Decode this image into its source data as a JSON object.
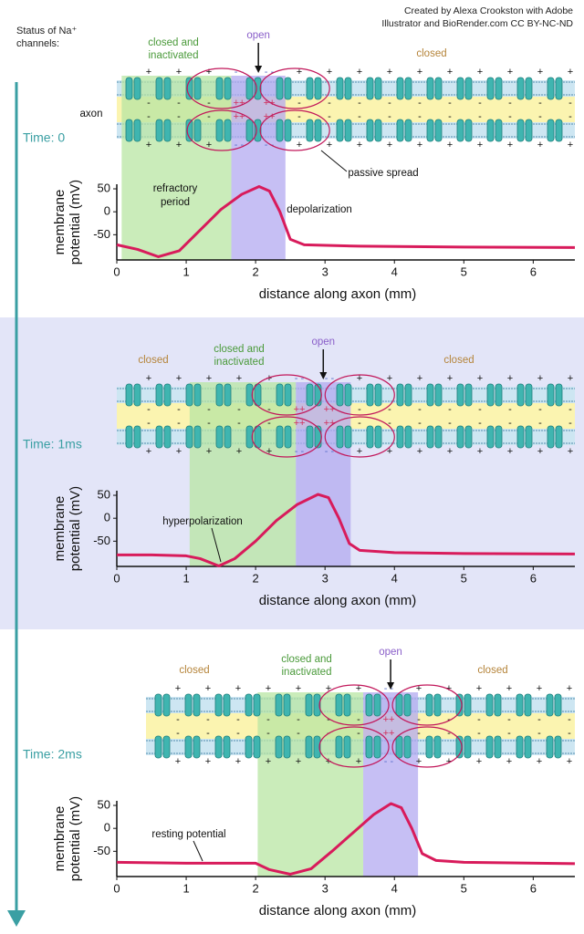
{
  "credit": [
    "Created by Alexa Crookston with Adobe",
    "Illustrator and BioRender.com CC BY-NC-ND"
  ],
  "status_label": [
    "Status of Na⁺",
    "channels:"
  ],
  "signs": {
    "positive": "+",
    "negative": "-",
    "double_positive": "++",
    "double_negative": "- -"
  },
  "panels": [
    {
      "time": "Time: 0",
      "status": [
        [
          "closed and",
          "inactivated"
        ],
        [
          "open"
        ],
        [
          "closed"
        ]
      ],
      "annotations": [
        [
          "axon"
        ],
        [
          "refractory",
          "period"
        ],
        [
          "depolarization"
        ],
        [
          "passive spread"
        ]
      ],
      "zones": [
        {
          "from": 0.07,
          "to": 1.65
        },
        {
          "from": 1.65,
          "to": 2.43
        }
      ],
      "chart": {
        "ylabel": [
          "membrane",
          "potential (mV)"
        ],
        "xlabel": "distance along axon (mm)",
        "xlim": [
          0,
          6.6
        ],
        "ylim": [
          -105,
          60
        ],
        "xticks": [
          0,
          1,
          2,
          3,
          4,
          5,
          6
        ],
        "yticks": [
          50,
          0,
          -50
        ],
        "x": [
          0,
          0.3,
          0.6,
          0.9,
          1.2,
          1.5,
          1.8,
          2.05,
          2.2,
          2.35,
          2.5,
          2.7,
          3.5,
          5,
          6.6
        ],
        "y": [
          -72,
          -82,
          -98,
          -85,
          -40,
          5,
          38,
          55,
          45,
          0,
          -60,
          -72,
          -75,
          -77,
          -78
        ]
      }
    },
    {
      "time": "Time: 1ms",
      "status": [
        [
          "closed"
        ],
        [
          "closed and",
          "inactivated"
        ],
        [
          "open"
        ],
        [
          "closed"
        ]
      ],
      "annotations": [
        [
          "hyperpolarization"
        ]
      ],
      "zones": [
        {
          "from": 1.05,
          "to": 2.58
        },
        {
          "from": 2.58,
          "to": 3.37
        }
      ],
      "chart": {
        "ylabel": [
          "membrane",
          "potential (mV)"
        ],
        "xlabel": "distance along axon (mm)",
        "xlim": [
          0,
          6.6
        ],
        "ylim": [
          -105,
          60
        ],
        "xticks": [
          0,
          1,
          2,
          3,
          4,
          5,
          6
        ],
        "yticks": [
          50,
          0,
          -50
        ],
        "x": [
          0,
          0.5,
          1.0,
          1.2,
          1.47,
          1.7,
          2.0,
          2.3,
          2.6,
          2.9,
          3.05,
          3.2,
          3.35,
          3.5,
          4,
          5,
          6.6
        ],
        "y": [
          -80,
          -80,
          -82,
          -88,
          -104,
          -88,
          -50,
          -5,
          30,
          52,
          45,
          0,
          -55,
          -70,
          -75,
          -77,
          -78
        ]
      }
    },
    {
      "time": "Time: 2ms",
      "status": [
        [
          "closed"
        ],
        [
          "closed and",
          "inactivated"
        ],
        [
          "open"
        ],
        [
          "closed"
        ]
      ],
      "annotations": [
        [
          "resting potential"
        ]
      ],
      "zones": [
        {
          "from": 2.03,
          "to": 3.55
        },
        {
          "from": 3.55,
          "to": 4.34
        }
      ],
      "chart": {
        "ylabel": [
          "membrane",
          "potential (mV)"
        ],
        "xlabel": "distance along axon (mm)",
        "xlim": [
          0,
          6.6
        ],
        "ylim": [
          -105,
          60
        ],
        "xticks": [
          0,
          1,
          2,
          3,
          4,
          5,
          6
        ],
        "yticks": [
          50,
          0,
          -50
        ],
        "x": [
          0,
          1,
          2.0,
          2.2,
          2.5,
          2.8,
          3.1,
          3.4,
          3.7,
          3.95,
          4.1,
          4.25,
          4.4,
          4.6,
          5,
          6.6
        ],
        "y": [
          -74,
          -76,
          -76,
          -90,
          -100,
          -88,
          -50,
          -10,
          30,
          54,
          45,
          0,
          -55,
          -70,
          -74,
          -77
        ]
      }
    }
  ]
}
